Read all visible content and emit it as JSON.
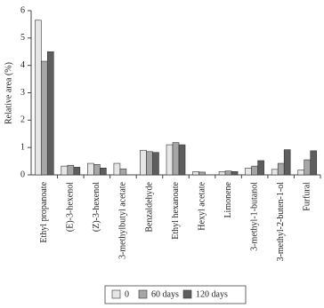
{
  "chart_data": {
    "type": "bar",
    "y_label": "Relative area (%)",
    "categories": [
      "Ethyl propanoate",
      "(E)-3-hexenol",
      "(Z)-3-hexenol",
      "3-methylbutyl acetate",
      "Benzaldehyde",
      "Ethyl hexanoate",
      "Hexyl acetate",
      "Limonene",
      "3-methyl-1-butanol",
      "3-methyl-2-buten-1-ol",
      "Furfural"
    ],
    "series": [
      {
        "name": "0",
        "color": "#e6e6e6",
        "values": [
          5.65,
          0.32,
          0.42,
          0.42,
          0.9,
          1.1,
          0.12,
          0.12,
          0.25,
          0.2,
          0.18
        ]
      },
      {
        "name": "60 days",
        "color": "#a6a6a6",
        "values": [
          4.15,
          0.35,
          0.38,
          0.22,
          0.85,
          1.18,
          0.1,
          0.14,
          0.32,
          0.42,
          0.55
        ]
      },
      {
        "name": "120 days",
        "color": "#5e5e5e",
        "values": [
          4.5,
          0.28,
          0.25,
          0,
          0.82,
          1.1,
          0,
          0.12,
          0.52,
          0.92,
          0.88
        ]
      }
    ],
    "ylim": [
      0,
      6
    ],
    "yticks": [
      0,
      1,
      2,
      3,
      4,
      5,
      6
    ]
  }
}
